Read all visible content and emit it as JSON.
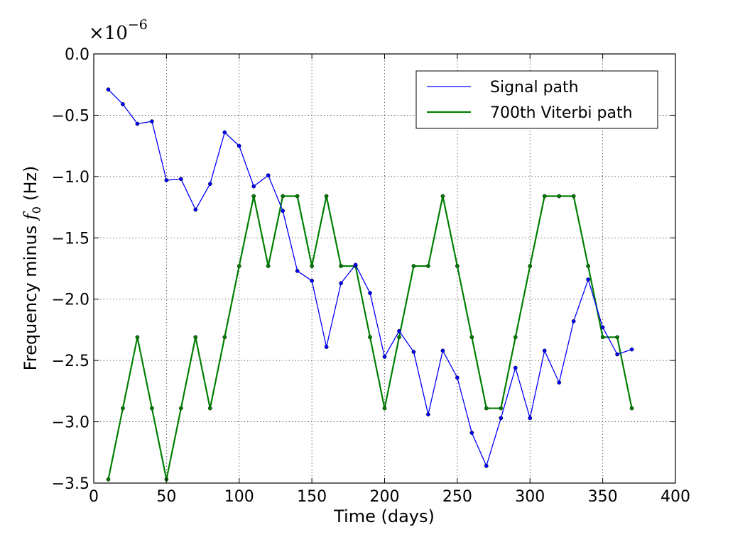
{
  "chart_data": {
    "type": "line",
    "xlabel": "Time (days)",
    "ylabel_text": "Frequency minus ",
    "ylabel_symbol": "f",
    "ylabel_subscript": "0",
    "ylabel_unit": "(Hz)",
    "y_multiplier_base": "×10",
    "y_multiplier_exponent": "−6",
    "xlim": [
      0,
      400
    ],
    "ylim": [
      -3.5,
      0.0
    ],
    "x_ticks": [
      0,
      50,
      100,
      150,
      200,
      250,
      300,
      350,
      400
    ],
    "x_tick_labels": [
      "0",
      "50",
      "100",
      "150",
      "200",
      "250",
      "300",
      "350",
      "400"
    ],
    "y_ticks": [
      0.0,
      -0.5,
      -1.0,
      -1.5,
      -2.0,
      -2.5,
      -3.0,
      -3.5
    ],
    "y_tick_labels": [
      "0.0",
      "−0.5",
      "−1.0",
      "−1.5",
      "−2.0",
      "−2.5",
      "−3.0",
      "−3.5"
    ],
    "grid": true,
    "legend_position": "top-right",
    "series": [
      {
        "name": "Signal path",
        "color": "#0000ff",
        "x": [
          10,
          20,
          30,
          40,
          50,
          60,
          70,
          80,
          90,
          100,
          110,
          120,
          130,
          140,
          150,
          160,
          170,
          180,
          190,
          200,
          210,
          220,
          230,
          240,
          250,
          260,
          270,
          280,
          290,
          300,
          310,
          320,
          330,
          340,
          350,
          360,
          370
        ],
        "y": [
          -0.29,
          -0.41,
          -0.57,
          -0.55,
          -1.03,
          -1.02,
          -1.27,
          -1.06,
          -0.64,
          -0.75,
          -1.08,
          -0.99,
          -1.28,
          -1.77,
          -1.85,
          -2.39,
          -1.87,
          -1.72,
          -1.95,
          -2.47,
          -2.26,
          -2.43,
          -2.94,
          -2.42,
          -2.64,
          -3.09,
          -3.36,
          -2.97,
          -2.56,
          -2.97,
          -2.42,
          -2.68,
          -2.18,
          -1.84,
          -2.23,
          -2.45,
          -2.41
        ]
      },
      {
        "name": "700th Viterbi path",
        "color": "#007f00",
        "x": [
          10,
          20,
          30,
          40,
          50,
          60,
          70,
          80,
          90,
          100,
          110,
          120,
          130,
          140,
          150,
          160,
          170,
          180,
          190,
          200,
          210,
          220,
          230,
          240,
          250,
          260,
          270,
          280,
          290,
          300,
          310,
          320,
          330,
          340,
          350,
          360,
          370
        ],
        "y": [
          -3.47,
          -2.89,
          -2.31,
          -2.89,
          -3.47,
          -2.89,
          -2.31,
          -2.89,
          -2.31,
          -1.73,
          -1.16,
          -1.73,
          -1.16,
          -1.16,
          -1.73,
          -1.16,
          -1.73,
          -1.73,
          -2.31,
          -2.89,
          -2.31,
          -1.73,
          -1.73,
          -1.16,
          -1.73,
          -2.31,
          -2.89,
          -2.89,
          -2.31,
          -1.73,
          -1.16,
          -1.16,
          -1.16,
          -1.73,
          -2.31,
          -2.31,
          -2.89
        ]
      }
    ]
  }
}
